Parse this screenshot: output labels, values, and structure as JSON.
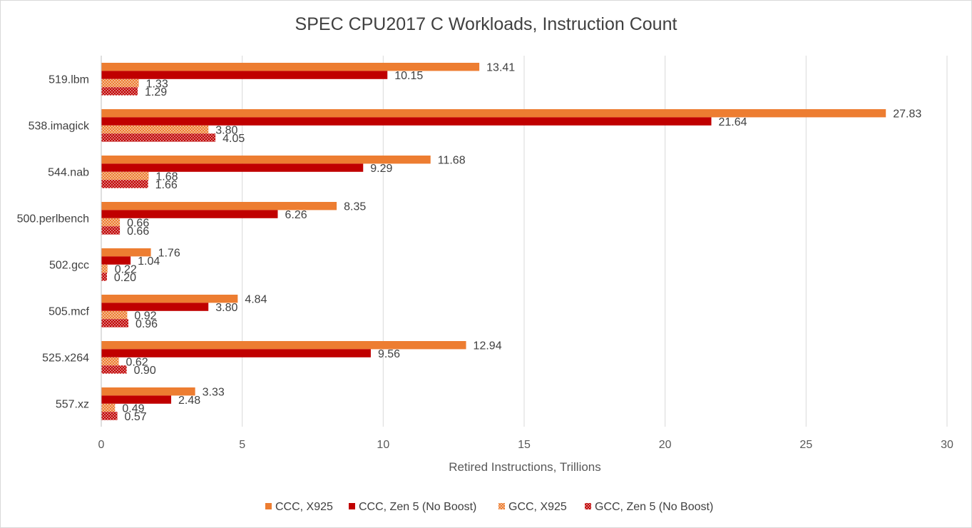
{
  "chart_data": {
    "type": "bar",
    "orientation": "horizontal",
    "title": "SPEC CPU2017 C Workloads, Instruction Count",
    "xlabel": "Retired Instructions, Trillions",
    "ylabel": "",
    "xlim": [
      0,
      30
    ],
    "x_ticks": [
      "0",
      "5",
      "10",
      "15",
      "20",
      "25",
      "30"
    ],
    "grid": "vertical",
    "legend_position": "bottom",
    "categories": [
      "519.lbm",
      "538.imagick",
      "544.nab",
      "500.perlbench",
      "502.gcc",
      "505.mcf",
      "525.x264",
      "557.xz"
    ],
    "series": [
      {
        "name": "CCC, X925",
        "color": "#ED7D31",
        "pattern": "solid",
        "values": [
          13.41,
          27.83,
          11.68,
          8.35,
          1.76,
          4.84,
          12.94,
          3.33
        ],
        "labels": [
          "13.41",
          "27.83",
          "11.68",
          "8.35",
          "1.76",
          "4.84",
          "12.94",
          "3.33"
        ]
      },
      {
        "name": "CCC, Zen 5 (No Boost)",
        "color": "#C00000",
        "pattern": "solid",
        "values": [
          10.15,
          21.64,
          9.29,
          6.26,
          1.04,
          3.8,
          9.56,
          2.48
        ],
        "labels": [
          "10.15",
          "21.64",
          "9.29",
          "6.26",
          "1.04",
          "3.80",
          "9.56",
          "2.48"
        ]
      },
      {
        "name": "GCC, X925",
        "color": "#ED7D31",
        "pattern": "dotted",
        "values": [
          1.33,
          3.8,
          1.68,
          0.66,
          0.22,
          0.92,
          0.62,
          0.49
        ],
        "labels": [
          "1.33",
          "3.80",
          "1.68",
          "0.66",
          "0.22",
          "0.92",
          "0.62",
          "0.49"
        ]
      },
      {
        "name": "GCC, Zen 5 (No Boost)",
        "color": "#C00000",
        "pattern": "dotted",
        "values": [
          1.29,
          4.05,
          1.66,
          0.66,
          0.2,
          0.96,
          0.9,
          0.57
        ],
        "labels": [
          "1.29",
          "4.05",
          "1.66",
          "0.66",
          "0.20",
          "0.96",
          "0.90",
          "0.57"
        ]
      }
    ]
  }
}
